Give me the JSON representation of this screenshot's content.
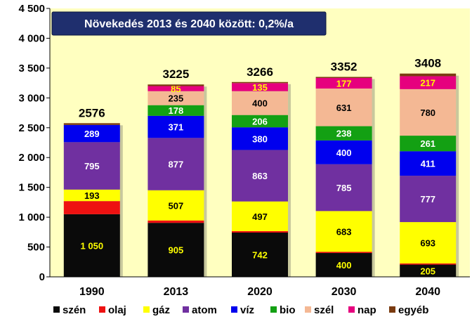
{
  "chart_data": {
    "type": "bar",
    "stacked": true,
    "title": "Növekedés 2013 és 2040 között: 0,2%/a",
    "categories": [
      "1990",
      "2013",
      "2020",
      "2030",
      "2040"
    ],
    "ylim": [
      0,
      4500
    ],
    "yticks": [
      0,
      500,
      1000,
      1500,
      2000,
      2500,
      3000,
      3500,
      4000,
      4500
    ],
    "ytick_labels": [
      "0",
      "500",
      "1 000",
      "1 500",
      "2 000",
      "2 500",
      "3 000",
      "3 500",
      "4 000",
      "4 500"
    ],
    "totals": [
      "2576",
      "3225",
      "3266",
      "3352",
      "3408"
    ],
    "series": [
      {
        "name": "szén",
        "color": "#0a0a0a",
        "values": [
          1050,
          905,
          742,
          400,
          205
        ],
        "labels": [
          "1 050",
          "905",
          "742",
          "400",
          "205"
        ],
        "label_color": "#ffff00"
      },
      {
        "name": "olaj",
        "color": "#ee1111",
        "values": [
          220,
          40,
          25,
          20,
          20
        ],
        "labels": [
          "",
          "",
          "",
          "",
          ""
        ],
        "label_color": "#ffffff"
      },
      {
        "name": "gáz",
        "color": "#ffff00",
        "values": [
          193,
          507,
          497,
          683,
          693
        ],
        "labels": [
          "193",
          "507",
          "497",
          "683",
          "693"
        ],
        "label_color": "#000000"
      },
      {
        "name": "atom",
        "color": "#7030a0",
        "values": [
          795,
          877,
          863,
          785,
          777
        ],
        "labels": [
          "795",
          "877",
          "863",
          "785",
          "777"
        ],
        "label_color": "#ffffff"
      },
      {
        "name": "víz",
        "color": "#0000ee",
        "values": [
          289,
          371,
          380,
          400,
          411
        ],
        "labels": [
          "289",
          "371",
          "380",
          "400",
          "411"
        ],
        "label_color": "#ffffff"
      },
      {
        "name": "bio",
        "color": "#13a013",
        "values": [
          0,
          178,
          206,
          238,
          261
        ],
        "labels": [
          "",
          "178",
          "206",
          "238",
          "261"
        ],
        "label_color": "#ffffff"
      },
      {
        "name": "szél",
        "color": "#f4b894",
        "values": [
          0,
          235,
          400,
          631,
          780
        ],
        "labels": [
          "",
          "235",
          "400",
          "631",
          "780"
        ],
        "label_color": "#000000"
      },
      {
        "name": "nap",
        "color": "#e6007e",
        "values": [
          0,
          85,
          135,
          177,
          217
        ],
        "labels": [
          "",
          "85",
          "135",
          "177",
          "217"
        ],
        "label_color": "#ffff00"
      },
      {
        "name": "egyéb",
        "color": "#7a3b10",
        "values": [
          29,
          27,
          18,
          18,
          44
        ],
        "labels": [
          "",
          "",
          "",
          "",
          ""
        ],
        "label_color": "#ffffff"
      }
    ],
    "legend_position": "bottom",
    "grid": false,
    "plot_background": "#ffffc0",
    "title_box_color": "#1f2f6e"
  }
}
